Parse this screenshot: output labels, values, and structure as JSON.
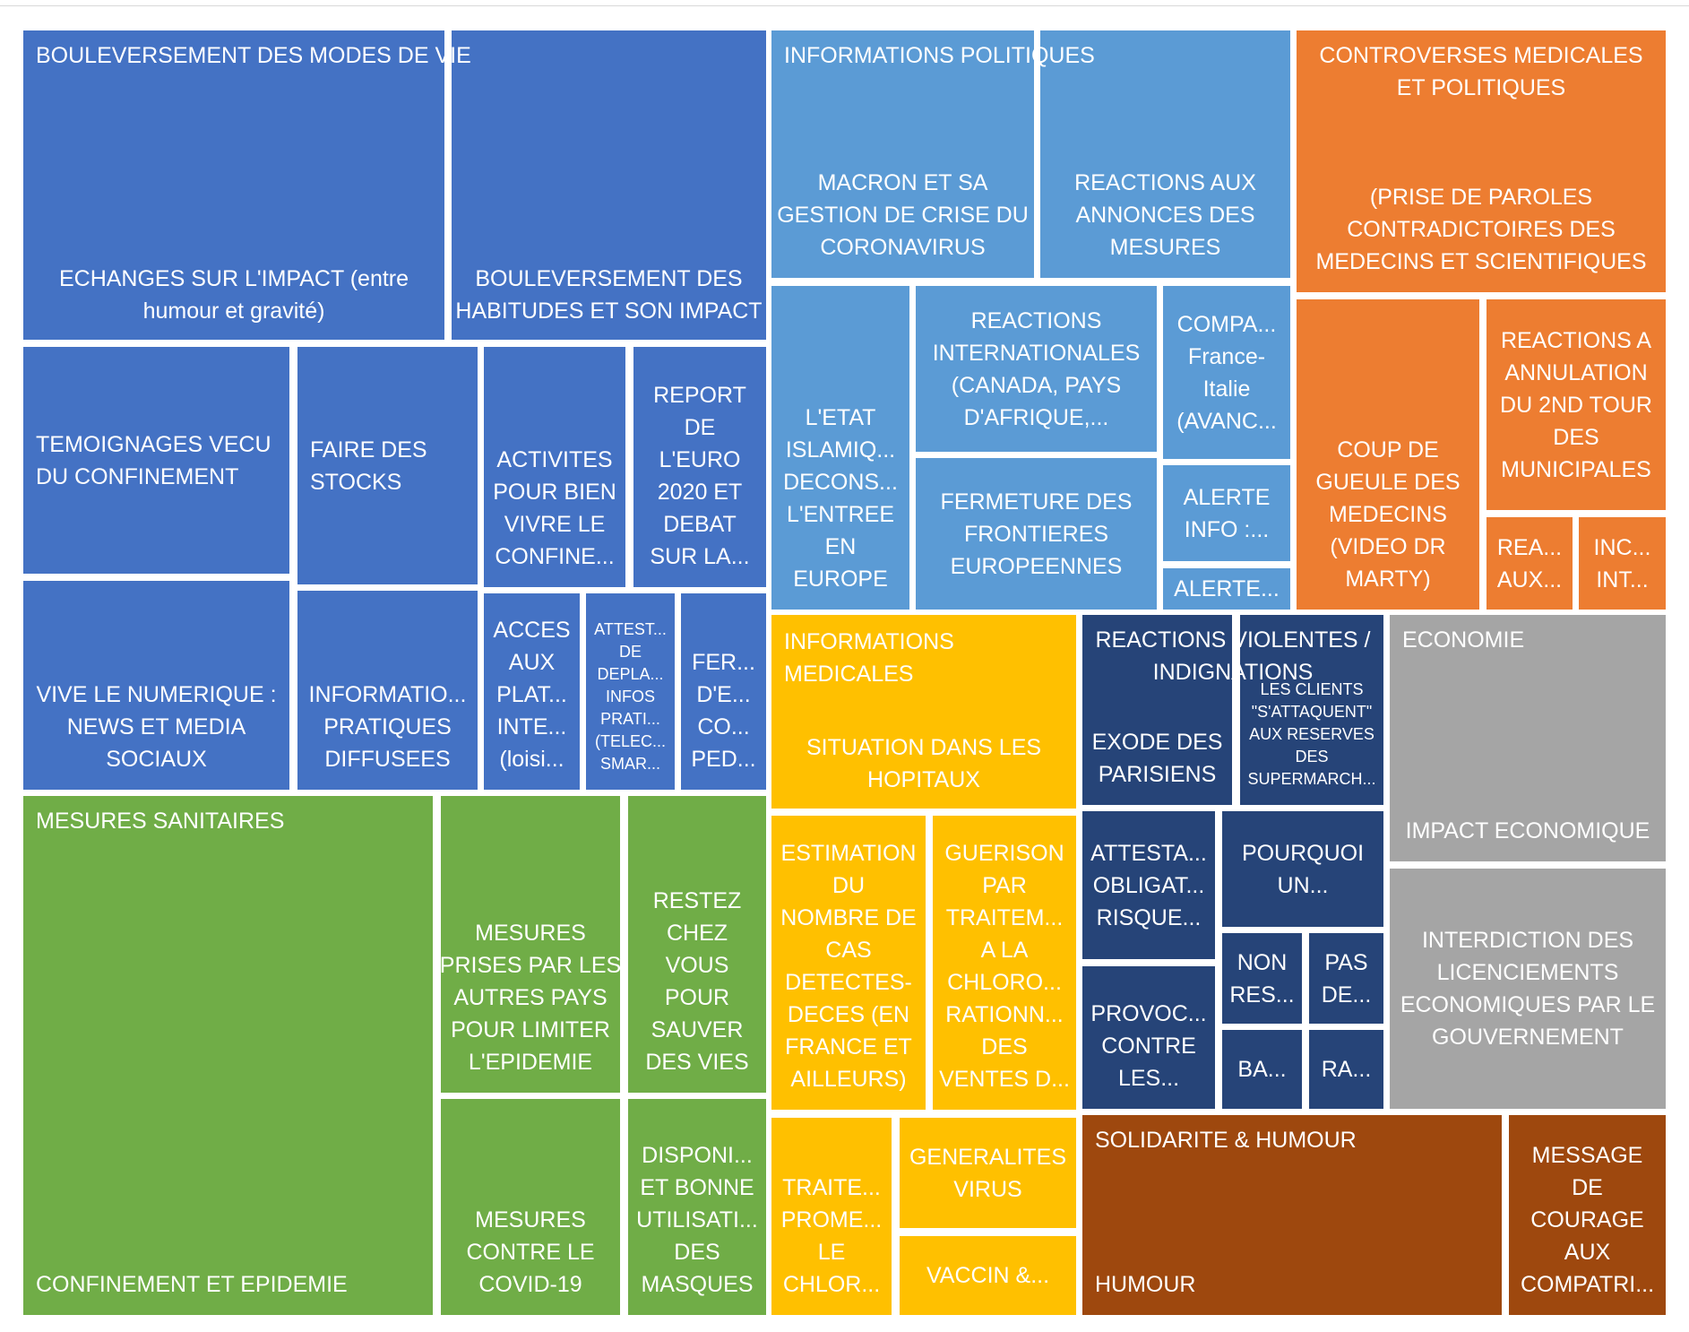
{
  "chart_data": {
    "type": "treemap",
    "groups": [
      {
        "name": "BOULEVERSEMENT DES MODES DE VIE",
        "color": "#4472C4",
        "items": [
          {
            "label": "ECHANGES SUR L'IMPACT (entre humour et gravité)",
            "lines": [
              "ECHANGES SUR L'IMPACT (entre",
              "humour et gravité)"
            ]
          },
          {
            "label": "BOULEVERSEMENT DES HABITUDES ET SON IMPACT",
            "lines": [
              "BOULEVERSEMENT DES",
              "HABITUDES ET SON IMPACT"
            ]
          },
          {
            "label": "TEMOIGNAGES VECU DU CONFINEMENT",
            "lines": [
              "TEMOIGNAGES VECU",
              "DU CONFINEMENT"
            ]
          },
          {
            "label": "FAIRE DES STOCKS",
            "lines": [
              "FAIRE DES",
              "STOCKS"
            ]
          },
          {
            "label": "ACTIVITES POUR BIEN VIVRE LE CONFINE...",
            "lines": [
              "ACTIVITES",
              "POUR BIEN",
              "VIVRE LE",
              "CONFINE..."
            ]
          },
          {
            "label": "REPORT DE L'EURO 2020 ET DEBAT SUR LA...",
            "lines": [
              "REPORT",
              "DE",
              "L'EURO",
              "2020 ET",
              "DEBAT",
              "SUR LA..."
            ]
          },
          {
            "label": "VIVE LE NUMERIQUE : NEWS ET MEDIA SOCIAUX",
            "lines": [
              "VIVE LE NUMERIQUE :",
              "NEWS ET MEDIA",
              "SOCIAUX"
            ]
          },
          {
            "label": "INFORMATIO... PRATIQUES DIFFUSEES",
            "lines": [
              "INFORMATIO...",
              "PRATIQUES",
              "DIFFUSEES"
            ]
          },
          {
            "label": "ACCES AUX PLAT... INTE... (loisi...",
            "lines": [
              "ACCES",
              "AUX",
              "PLAT...",
              "INTE...",
              "(loisi..."
            ]
          },
          {
            "label": "ATTEST... DE DEPLA... INFOS PRATI... (TELEC... SMAR...",
            "lines": [
              "ATTEST...",
              "DE",
              "DEPLA...",
              "INFOS",
              "PRATI...",
              "(TELEC...",
              "SMAR..."
            ]
          },
          {
            "label": "FER... D'E... CO... PED...",
            "lines": [
              "FER...",
              "D'E...",
              "CO...",
              "PED..."
            ]
          }
        ]
      },
      {
        "name": "INFORMATIONS POLITIQUES",
        "color": "#5B9BD5",
        "items": [
          {
            "label": "MACRON ET SA GESTION DE CRISE DU CORONAVIRUS",
            "lines": [
              "MACRON ET SA",
              "GESTION DE CRISE DU",
              "CORONAVIRUS"
            ]
          },
          {
            "label": "REACTIONS AUX ANNONCES DES MESURES",
            "lines": [
              "REACTIONS AUX",
              "ANNONCES DES",
              "MESURES"
            ]
          },
          {
            "label": "L'ETAT ISLAMIQ... DECONS... L'ENTREE EN EUROPE",
            "lines": [
              "L'ETAT",
              "ISLAMIQ...",
              "DECONS...",
              "L'ENTREE",
              "EN",
              "EUROPE"
            ]
          },
          {
            "label": "REACTIONS INTERNATIONALES (CANADA, PAYS D'AFRIQUE,...",
            "lines": [
              "REACTIONS",
              "INTERNATIONALES",
              "(CANADA, PAYS",
              "D'AFRIQUE,..."
            ]
          },
          {
            "label": "COMPA... France-Italie (AVANC...",
            "lines": [
              "COMPA...",
              "France-",
              "Italie",
              "(AVANC..."
            ]
          },
          {
            "label": "FERMETURE DES FRONTIERES EUROPEENNES",
            "lines": [
              "FERMETURE DES",
              "FRONTIERES",
              "EUROPEENNES"
            ]
          },
          {
            "label": "ALERTE INFO :...",
            "lines": [
              "ALERTE",
              "INFO :..."
            ]
          },
          {
            "label": "ALERTE...",
            "lines": [
              "ALERTE..."
            ]
          }
        ]
      },
      {
        "name": "CONTROVERSES MEDICALES ET POLITIQUES",
        "color": "#ED7D31",
        "items": [
          {
            "label": "(PRISE DE PAROLES CONTRADICTOIRES DES MEDECINS ET SCIENTIFIQUES",
            "lines": [
              "(PRISE DE PAROLES",
              "CONTRADICTOIRES DES",
              "MEDECINS ET SCIENTIFIQUES"
            ]
          },
          {
            "label": "COUP DE GUEULE DES MEDECINS (VIDEO DR MARTY)",
            "lines": [
              "COUP DE",
              "GUEULE DES",
              "MEDECINS",
              "(VIDEO DR",
              "MARTY)"
            ]
          },
          {
            "label": "REACTIONS A ANNULATION DU 2ND TOUR DES MUNICIPALES",
            "lines": [
              "REACTIONS A",
              "ANNULATION",
              "DU 2ND TOUR",
              "DES",
              "MUNICIPALES"
            ]
          },
          {
            "label": "REA... AUX...",
            "lines": [
              "REA...",
              "AUX..."
            ]
          },
          {
            "label": "INC... INT...",
            "lines": [
              "INC...",
              "INT..."
            ]
          }
        ]
      },
      {
        "name": "MESURES SANITAIRES",
        "color": "#70AD47",
        "items": [
          {
            "label": "CONFINEMENT ET EPIDEMIE",
            "lines": [
              "CONFINEMENT ET EPIDEMIE"
            ]
          },
          {
            "label": "MESURES PRISES PAR LES AUTRES PAYS POUR LIMITER L'EPIDEMIE",
            "lines": [
              "MESURES",
              "PRISES PAR LES",
              "AUTRES PAYS",
              "POUR LIMITER",
              "L'EPIDEMIE"
            ]
          },
          {
            "label": "RESTEZ CHEZ VOUS POUR SAUVER DES VIES",
            "lines": [
              "RESTEZ",
              "CHEZ",
              "VOUS",
              "POUR",
              "SAUVER",
              "DES VIES"
            ]
          },
          {
            "label": "MESURES CONTRE LE COVID-19",
            "lines": [
              "MESURES",
              "CONTRE LE",
              "COVID-19"
            ]
          },
          {
            "label": "DISPONI... ET BONNE UTILISATI... DES MASQUES",
            "lines": [
              "DISPONI...",
              "ET BONNE",
              "UTILISATI...",
              "DES",
              "MASQUES"
            ]
          }
        ]
      },
      {
        "name": "INFORMATIONS MEDICALES",
        "color": "#FFC000",
        "items": [
          {
            "label": "SITUATION DANS LES HOPITAUX",
            "lines": [
              "SITUATION DANS LES",
              "HOPITAUX"
            ]
          },
          {
            "label": "ESTIMATION DU NOMBRE DE CAS DETECTES-DECES (EN FRANCE ET AILLEURS)",
            "lines": [
              "ESTIMATION",
              "DU",
              "NOMBRE DE",
              "CAS",
              "DETECTES-",
              "DECES (EN",
              "FRANCE ET",
              "AILLEURS)"
            ]
          },
          {
            "label": "GUERISON PAR TRAITEM... A LA CHLORO... RATIONN... DES VENTES D...",
            "lines": [
              "GUERISON",
              "PAR",
              "TRAITEM...",
              "A LA",
              "CHLORO...",
              "RATIONN...",
              "DES",
              "VENTES D..."
            ]
          },
          {
            "label": "TRAITE... PROME... LE CHLOR...",
            "lines": [
              "TRAITE...",
              "PROME...",
              "LE",
              "CHLOR..."
            ]
          },
          {
            "label": "GENERALITES VIRUS",
            "lines": [
              "GENERALITES",
              "VIRUS"
            ]
          },
          {
            "label": "VACCIN &...",
            "lines": [
              "VACCIN &..."
            ]
          }
        ]
      },
      {
        "name": "REACTIONS VIOLENTES / INDIGNATIONS",
        "color": "#264478",
        "items": [
          {
            "label": "EXODE DES PARISIENS",
            "lines": [
              "EXODE DES",
              "PARISIENS"
            ]
          },
          {
            "label": "LES CLIENTS \"S'ATTAQUENT\" AUX RESERVES DES SUPERMARCH...",
            "lines": [
              "LES CLIENTS",
              "\"S'ATTAQUENT\"",
              "AUX RESERVES",
              "DES",
              "SUPERMARCH..."
            ]
          },
          {
            "label": "ATTESTA... OBLIGAT... RISQUE...",
            "lines": [
              "ATTESTA...",
              "OBLIGAT...",
              "RISQUE..."
            ]
          },
          {
            "label": "POURQUOI UN...",
            "lines": [
              "POURQUOI",
              "UN..."
            ]
          },
          {
            "label": "NON RES...",
            "lines": [
              "NON",
              "RES..."
            ]
          },
          {
            "label": "PAS DE...",
            "lines": [
              "PAS",
              "DE..."
            ]
          },
          {
            "label": "PROVOC... CONTRE LES...",
            "lines": [
              "PROVOC...",
              "CONTRE",
              "LES..."
            ]
          },
          {
            "label": "BA...",
            "lines": [
              "BA..."
            ]
          },
          {
            "label": "RA...",
            "lines": [
              "RA..."
            ]
          }
        ]
      },
      {
        "name": "ECONOMIE",
        "color": "#A5A5A5",
        "items": [
          {
            "label": "IMPACT ECONOMIQUE",
            "lines": [
              "IMPACT ECONOMIQUE"
            ]
          },
          {
            "label": "INTERDICTION DES LICENCIEMENTS ECONOMIQUES PAR LE GOUVERNEMENT",
            "lines": [
              "INTERDICTION  DES",
              "LICENCIEMENTS",
              "ECONOMIQUES PAR LE",
              "GOUVERNEMENT"
            ]
          }
        ]
      },
      {
        "name": "SOLIDARITE & HUMOUR",
        "color": "#9E480E",
        "items": [
          {
            "label": "HUMOUR",
            "lines": [
              "HUMOUR"
            ]
          },
          {
            "label": "MESSAGE DE COURAGE AUX COMPATRI...",
            "lines": [
              "MESSAGE",
              "DE",
              "COURAGE",
              "AUX",
              "COMPATRI..."
            ]
          }
        ]
      }
    ]
  }
}
